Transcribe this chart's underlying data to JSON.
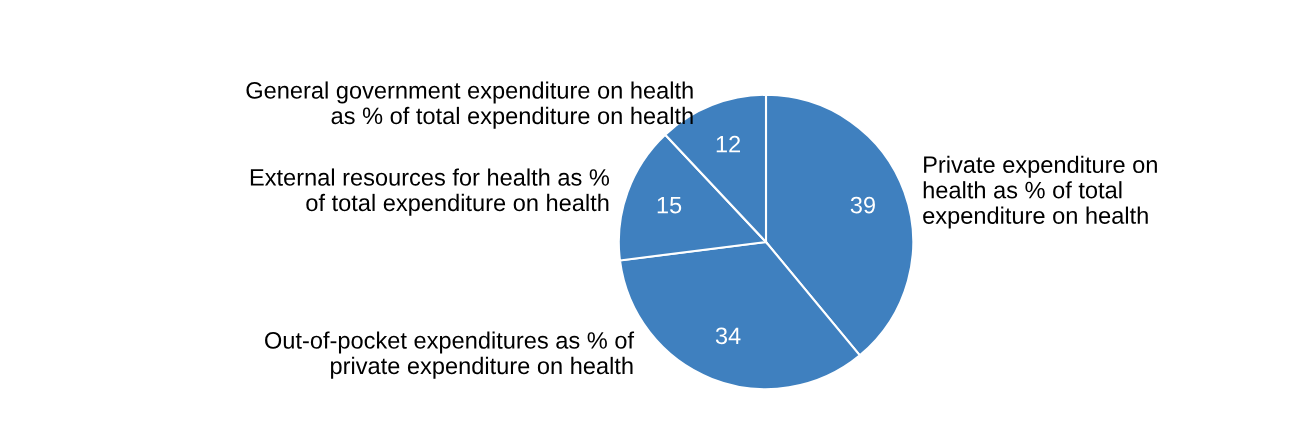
{
  "chart_data": {
    "type": "pie",
    "categories": [
      "Private expenditure on\nhealth as % of total\nexpenditure on health",
      "Out-of-pocket expenditures as % of\nprivate expenditure on health",
      "External resources for health as %\nof total expenditure on health",
      "General government expenditure on health\nas % of total expenditure on health"
    ],
    "values": [
      39,
      34,
      15,
      12
    ],
    "colors": [
      "#3f80bf",
      "#3f80bf",
      "#3f80bf",
      "#3f80bf"
    ],
    "data_labels": true
  }
}
